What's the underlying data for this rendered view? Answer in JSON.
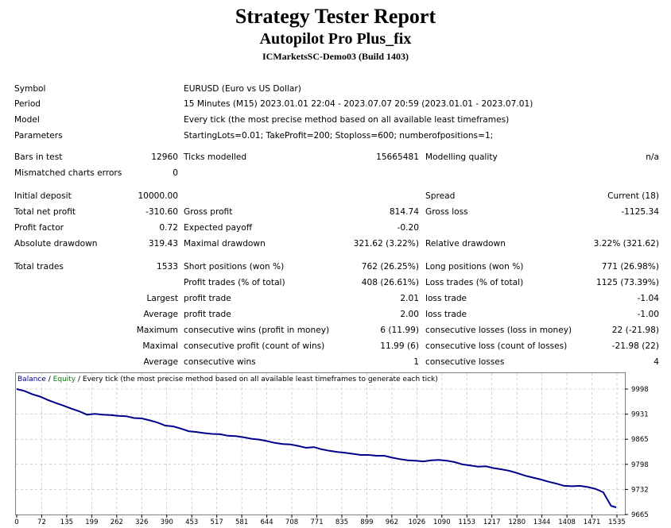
{
  "header": {
    "title": "Strategy Tester Report",
    "subtitle": "Autopilot Pro Plus_fix",
    "server": "ICMarketsSC-Demo03 (Build 1403)"
  },
  "info": {
    "symbol_label": "Symbol",
    "symbol_value": "EURUSD (Euro vs US Dollar)",
    "period_label": "Period",
    "period_value": "15 Minutes (M15) 2023.01.01 22:04 - 2023.07.07 20:59 (2023.01.01 - 2023.07.01)",
    "model_label": "Model",
    "model_value": "Every tick (the most precise method based on all available least timeframes)",
    "params_label": "Parameters",
    "params_value": "StartingLots=0.01; TakeProfit=200; Stoploss=600; numberofpositions=1;"
  },
  "stats": {
    "bars_label": "Bars in test",
    "bars_value": "12960",
    "ticks_label": "Ticks modelled",
    "ticks_value": "15665481",
    "quality_label": "Modelling quality",
    "quality_value": "n/a",
    "mismatch_label": "Mismatched charts errors",
    "mismatch_value": "0",
    "deposit_label": "Initial deposit",
    "deposit_value": "10000.00",
    "spread_label": "Spread",
    "spread_value": "Current (18)",
    "netprofit_label": "Total net profit",
    "netprofit_value": "-310.60",
    "grossprofit_label": "Gross profit",
    "grossprofit_value": "814.74",
    "grossloss_label": "Gross loss",
    "grossloss_value": "-1125.34",
    "pf_label": "Profit factor",
    "pf_value": "0.72",
    "payoff_label": "Expected payoff",
    "payoff_value": "-0.20",
    "absdd_label": "Absolute drawdown",
    "absdd_value": "319.43",
    "maxdd_label": "Maximal drawdown",
    "maxdd_value": "321.62 (3.22%)",
    "reldd_label": "Relative drawdown",
    "reldd_value": "3.22% (321.62)",
    "trades_label": "Total trades",
    "trades_value": "1533",
    "short_label": "Short positions (won %)",
    "short_value": "762 (26.25%)",
    "long_label": "Long positions (won %)",
    "long_value": "771 (26.98%)",
    "profittrades_label": "Profit trades (% of total)",
    "profittrades_value": "408 (26.61%)",
    "losstrades_label": "Loss trades (% of total)",
    "losstrades_value": "1125 (73.39%)",
    "largest_label": "Largest",
    "largest_profit_label": "profit trade",
    "largest_profit_value": "2.01",
    "largest_loss_label": "loss trade",
    "largest_loss_value": "-1.04",
    "average_label": "Average",
    "average_profit_label": "profit trade",
    "average_profit_value": "2.00",
    "average_loss_label": "loss trade",
    "average_loss_value": "-1.00",
    "maximum_label": "Maximum",
    "max_wins_label": "consecutive wins (profit in money)",
    "max_wins_value": "6 (11.99)",
    "max_losses_label": "consecutive losses (loss in money)",
    "max_losses_value": "22 (-21.98)",
    "maximal_label": "Maximal",
    "maximal_profit_label": "consecutive profit (count of wins)",
    "maximal_profit_value": "11.99 (6)",
    "maximal_loss_label": "consecutive loss (count of losses)",
    "maximal_loss_value": "-21.98 (22)",
    "avg2_label": "Average",
    "avg_wins_label": "consecutive wins",
    "avg_wins_value": "1",
    "avg_losses_label": "consecutive losses",
    "avg_losses_value": "4"
  },
  "chart_data": {
    "type": "line",
    "legend": {
      "balance": "Balance",
      "sep1": " / ",
      "equity": "Equity",
      "rest": " / Every tick (the most precise method based on all available least timeframes to generate each tick)"
    },
    "colors": {
      "balance": "#00008b",
      "equity": "#008000",
      "grid": "#b4b4b4",
      "border": "#808080"
    },
    "x_ticks": [
      "0",
      "72",
      "135",
      "199",
      "262",
      "326",
      "390",
      "453",
      "517",
      "581",
      "644",
      "708",
      "771",
      "835",
      "899",
      "962",
      "1026",
      "1090",
      "1153",
      "1217",
      "1280",
      "1344",
      "1408",
      "1471",
      "1535"
    ],
    "y_ticks": [
      "9998",
      "9931",
      "9865",
      "9798",
      "9732",
      "9665"
    ],
    "xlim": [
      0,
      1535
    ],
    "ylim": [
      9665,
      9998
    ],
    "series": [
      {
        "name": "Balance",
        "x": [
          0,
          20,
          40,
          60,
          80,
          100,
          120,
          140,
          160,
          180,
          200,
          220,
          240,
          260,
          280,
          300,
          320,
          340,
          360,
          380,
          400,
          420,
          440,
          460,
          480,
          500,
          520,
          540,
          560,
          580,
          600,
          620,
          640,
          660,
          680,
          700,
          720,
          740,
          760,
          780,
          800,
          820,
          840,
          860,
          880,
          900,
          920,
          940,
          960,
          980,
          1000,
          1020,
          1040,
          1060,
          1080,
          1100,
          1120,
          1140,
          1160,
          1180,
          1200,
          1220,
          1240,
          1260,
          1280,
          1300,
          1320,
          1340,
          1360,
          1380,
          1400,
          1420,
          1440,
          1460,
          1480,
          1500,
          1520,
          1533
        ],
        "y": [
          9998,
          9993,
          9984,
          9978,
          9969,
          9961,
          9954,
          9946,
          9939,
          9930,
          9932,
          9930,
          9929,
          9927,
          9926,
          9921,
          9920,
          9915,
          9909,
          9901,
          9899,
          9893,
          9886,
          9884,
          9881,
          9879,
          9878,
          9874,
          9873,
          9870,
          9866,
          9864,
          9860,
          9855,
          9852,
          9851,
          9847,
          9842,
          9844,
          9838,
          9834,
          9831,
          9829,
          9826,
          9823,
          9823,
          9821,
          9821,
          9816,
          9812,
          9809,
          9808,
          9806,
          9809,
          9810,
          9808,
          9804,
          9798,
          9795,
          9792,
          9793,
          9788,
          9785,
          9781,
          9775,
          9768,
          9763,
          9758,
          9752,
          9747,
          9741,
          9740,
          9741,
          9738,
          9733,
          9724,
          9688,
          9684
        ]
      }
    ]
  }
}
